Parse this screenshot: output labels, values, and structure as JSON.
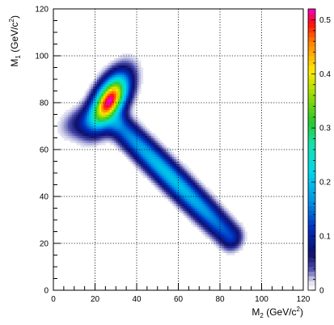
{
  "chart_data": {
    "type": "heatmap",
    "title": "",
    "xlabel": "M<sub>2</sub> (GeV/c<sup>2</sup>)",
    "ylabel": "M<sub>1</sub> (GeV/c<sup>2</sup>)",
    "xlabel_text": "M2 (GeV/c2)",
    "ylabel_text": "M1 (GeV/c2)",
    "xlim": [
      0,
      120
    ],
    "ylim": [
      0,
      120
    ],
    "x_ticks": [
      "0",
      "20",
      "40",
      "60",
      "80",
      "100",
      "120"
    ],
    "y_ticks": [
      "0",
      "20",
      "40",
      "60",
      "80",
      "100",
      "120"
    ],
    "colorbar": {
      "range": [
        0,
        0.52
      ],
      "ticks": [
        "0",
        "0.1",
        "0.2",
        "0.3",
        "0.4",
        "0.5"
      ],
      "palette": "rainbow"
    },
    "grid": true,
    "components": [
      {
        "name": "peak",
        "center_x": 27,
        "center_y": 81,
        "sigma_x": 5.8,
        "sigma_y": 7.2,
        "corr": 0.55,
        "amplitude": 0.52
      },
      {
        "name": "band",
        "from_x": 32,
        "from_y": 70,
        "to_x": 85,
        "to_y": 23,
        "width": 3.6,
        "amplitude": 0.17
      },
      {
        "name": "left-tail",
        "center_x": 15,
        "center_y": 72,
        "sigma_x": 7,
        "sigma_y": 4.5,
        "corr": 0.3,
        "amplitude": 0.07
      }
    ]
  }
}
